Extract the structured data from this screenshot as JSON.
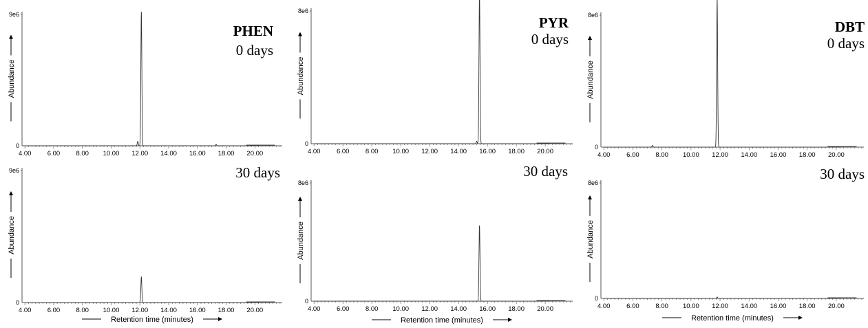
{
  "figure": {
    "x_axis_label": "Retention time (minutes)",
    "y_axis_label": "Abundance"
  },
  "chart_data": [
    {
      "type": "line",
      "compound": "PHEN",
      "sample": "0 days",
      "y_top_label": "9e6",
      "y_zero_label": "0",
      "xlim": [
        3.8,
        21.9
      ],
      "ylim": [
        0,
        9000000
      ],
      "x_ticks": [
        "4.00",
        "6.00",
        "8.00",
        "10.00",
        "12.00",
        "14.00",
        "16.00",
        "18.00",
        "20.00"
      ],
      "peaks": [
        {
          "x": 11.85,
          "y": 300000
        },
        {
          "x": 12.1,
          "y": 9000000
        },
        {
          "x": 17.3,
          "y": 100000
        }
      ]
    },
    {
      "type": "line",
      "compound": "PYR",
      "sample": "0 days",
      "y_top_label": "8e6",
      "y_zero_label": "0",
      "xlim": [
        3.8,
        21.9
      ],
      "ylim": [
        0,
        8000000
      ],
      "x_ticks": [
        "4.00",
        "6.00",
        "8.00",
        "10.00",
        "12.00",
        "14.00",
        "16.00",
        "18.00",
        "20.00"
      ],
      "peaks": [
        {
          "x": 15.25,
          "y": 150000
        },
        {
          "x": 15.45,
          "y": 8900000
        }
      ]
    },
    {
      "type": "line",
      "compound": "DBT",
      "sample": "0 days",
      "y_top_label": "8e6",
      "y_zero_label": "0",
      "xlim": [
        3.8,
        21.9
      ],
      "ylim": [
        0,
        8000000
      ],
      "x_ticks": [
        "4.00",
        "6.00",
        "8.00",
        "10.00",
        "12.00",
        "14.00",
        "16.00",
        "18.00",
        "20.00"
      ],
      "peaks": [
        {
          "x": 7.35,
          "y": 100000
        },
        {
          "x": 11.8,
          "y": 8800000
        }
      ]
    },
    {
      "type": "line",
      "compound": "",
      "sample": "30 days",
      "y_top_label": "9e6",
      "y_zero_label": "0",
      "xlim": [
        3.8,
        21.9
      ],
      "ylim": [
        0,
        9000000
      ],
      "x_ticks": [
        "4.00",
        "6.00",
        "8.00",
        "10.00",
        "12.00",
        "14.00",
        "16.00",
        "18.00",
        "20.00"
      ],
      "peaks": [
        {
          "x": 12.1,
          "y": 1700000
        }
      ]
    },
    {
      "type": "line",
      "compound": "",
      "sample": "30 days",
      "y_top_label": "8e6",
      "y_zero_label": "0",
      "xlim": [
        3.8,
        21.9
      ],
      "ylim": [
        0,
        8000000
      ],
      "x_ticks": [
        "4.00",
        "6.00",
        "8.00",
        "10.00",
        "12.00",
        "14.00",
        "16.00",
        "18.00",
        "20.00"
      ],
      "peaks": [
        {
          "x": 15.45,
          "y": 5000000
        }
      ]
    },
    {
      "type": "line",
      "compound": "",
      "sample": "30 days",
      "y_top_label": "8e6",
      "y_zero_label": "0",
      "xlim": [
        3.8,
        21.9
      ],
      "ylim": [
        0,
        8000000
      ],
      "x_ticks": [
        "4.00",
        "6.00",
        "8.00",
        "10.00",
        "12.00",
        "14.00",
        "16.00",
        "18.00",
        "20.00"
      ],
      "peaks": [
        {
          "x": 11.8,
          "y": 100000
        }
      ]
    }
  ]
}
